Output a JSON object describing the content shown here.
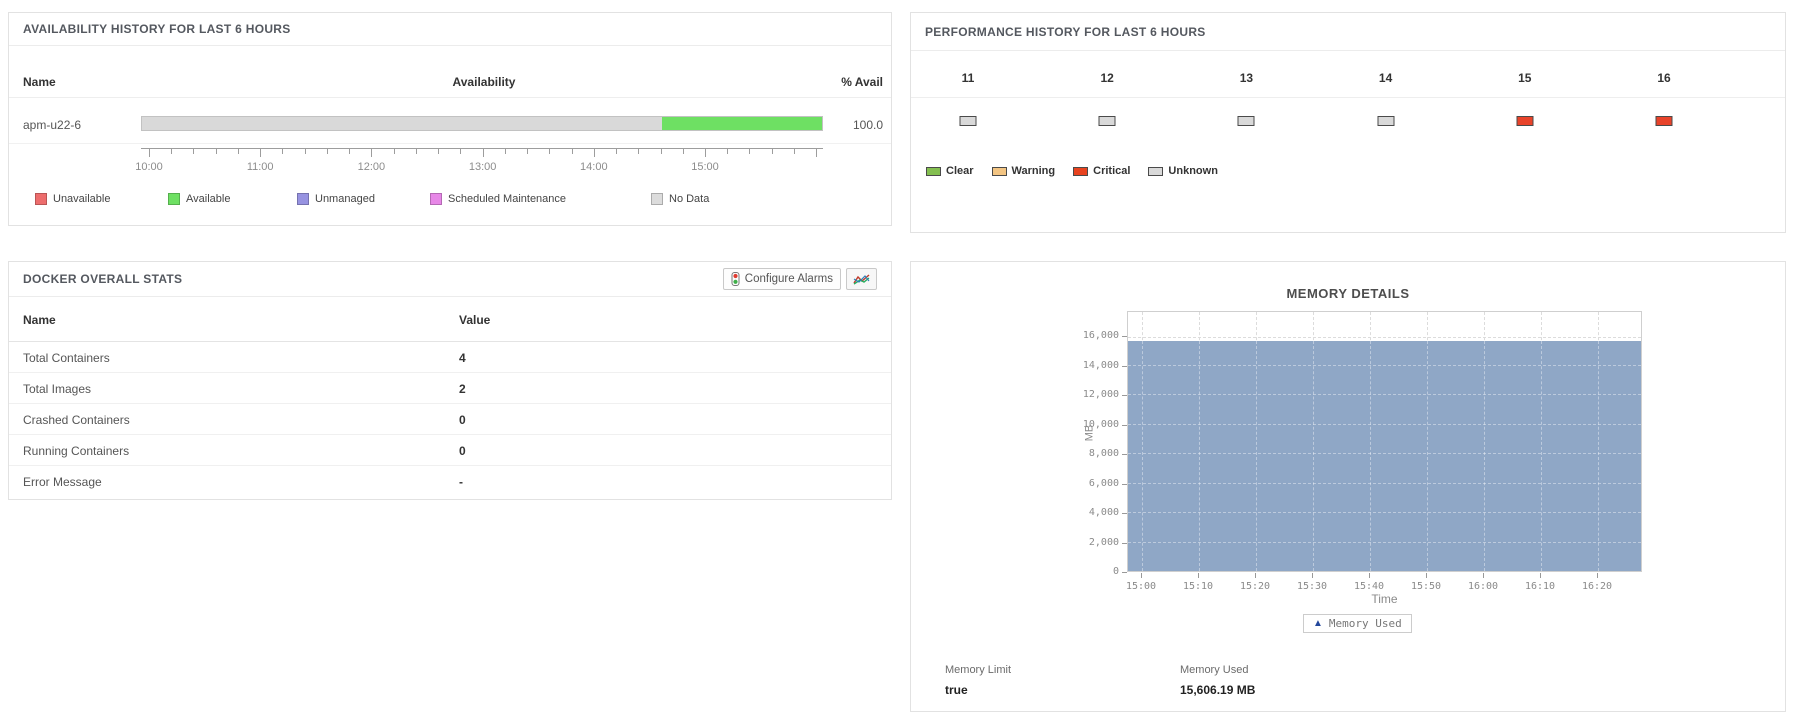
{
  "availability_panel": {
    "title": "AVAILABILITY HISTORY FOR LAST 6 HOURS",
    "columns": {
      "name": "Name",
      "availability": "Availability",
      "percent": "% Avail"
    },
    "row": {
      "name": "apm-u22-6",
      "percent_avail": "100.0"
    },
    "bar_segments": [
      {
        "status": "No Data",
        "color": "#d9d9d9",
        "percent": 76.4
      },
      {
        "status": "Available",
        "color": "#6ee063",
        "percent": 23.6
      }
    ],
    "axis_labels": [
      "10:00",
      "11:00",
      "12:00",
      "13:00",
      "14:00",
      "15:00"
    ],
    "legend": [
      {
        "label": "Unavailable",
        "color": "#ed6d6d"
      },
      {
        "label": "Available",
        "color": "#6ee063"
      },
      {
        "label": "Unmanaged",
        "color": "#9793e1"
      },
      {
        "label": "Scheduled Maintenance",
        "color": "#e787e7"
      },
      {
        "label": "No Data",
        "color": "#dcdcdc"
      }
    ]
  },
  "performance_panel": {
    "title": "PERFORMANCE HISTORY FOR LAST 6 HOURS",
    "hours": [
      {
        "label": "11",
        "status": "Unknown",
        "color": "#d9d9d9"
      },
      {
        "label": "12",
        "status": "Unknown",
        "color": "#d9d9d9"
      },
      {
        "label": "13",
        "status": "Unknown",
        "color": "#d9d9d9"
      },
      {
        "label": "14",
        "status": "Unknown",
        "color": "#d9d9d9"
      },
      {
        "label": "15",
        "status": "Critical",
        "color": "#e8432a"
      },
      {
        "label": "16",
        "status": "Critical",
        "color": "#e8432a"
      }
    ],
    "legend": [
      {
        "label": "Clear",
        "color": "#84bf50"
      },
      {
        "label": "Warning",
        "color": "#f3c583"
      },
      {
        "label": "Critical",
        "color": "#e8431f"
      },
      {
        "label": "Unknown",
        "color": "#d9d9d9"
      }
    ]
  },
  "docker_panel": {
    "title": "DOCKER OVERALL STATS",
    "buttons": {
      "configure_alarms": "Configure Alarms"
    },
    "columns": {
      "name": "Name",
      "value": "Value"
    },
    "rows": [
      {
        "name": "Total Containers",
        "value": "4"
      },
      {
        "name": "Total Images",
        "value": "2"
      },
      {
        "name": "Crashed Containers",
        "value": "0"
      },
      {
        "name": "Running Containers",
        "value": "0"
      },
      {
        "name": "Error Message",
        "value": "-"
      }
    ]
  },
  "memory_panel": {
    "title": "MEMORY DETAILS",
    "legend_label": "Memory Used",
    "footer": [
      {
        "label": "Memory Limit",
        "value": "true"
      },
      {
        "label": "Memory Used",
        "value": "15,606.19 MB"
      }
    ]
  },
  "icons": {
    "configure_alarms": "traffic-light-icon",
    "report_button": "line-chart-icon",
    "memory_legend_marker": "area-marker-icon"
  },
  "chart_data": [
    {
      "type": "bar",
      "title": "Availability timeline for apm-u22-6",
      "orientation": "horizontal-timeline",
      "x_ticks": [
        "10:00",
        "11:00",
        "12:00",
        "13:00",
        "14:00",
        "15:00"
      ],
      "x_range": [
        "10:00",
        "16:00"
      ],
      "segments": [
        {
          "label": "No Data",
          "percent": 76.4,
          "color": "#d9d9d9",
          "from": "10:00",
          "to": "14:35"
        },
        {
          "label": "Available",
          "percent": 23.6,
          "color": "#6ee063",
          "from": "14:35",
          "to": "16:00"
        }
      ],
      "percent_available": 100.0
    },
    {
      "type": "heatmap",
      "title": "Performance history by hour",
      "categories": [
        "11",
        "12",
        "13",
        "14",
        "15",
        "16"
      ],
      "values": [
        "Unknown",
        "Unknown",
        "Unknown",
        "Unknown",
        "Critical",
        "Critical"
      ],
      "legend": [
        "Clear",
        "Warning",
        "Critical",
        "Unknown"
      ]
    },
    {
      "type": "area",
      "title": "MEMORY DETAILS",
      "xlabel": "Time",
      "ylabel": "MB",
      "x": [
        "15:00",
        "15:10",
        "15:20",
        "15:30",
        "15:40",
        "15:50",
        "16:00",
        "16:10",
        "16:20"
      ],
      "series": [
        {
          "name": "Memory Used",
          "color": "#8fa7c6",
          "values": [
            15606.19,
            15606.19,
            15606.19,
            15606.19,
            15606.19,
            15606.19,
            15606.19,
            15606.19,
            15606.19
          ]
        }
      ],
      "y_ticks": [
        0,
        2000,
        4000,
        6000,
        8000,
        10000,
        12000,
        14000,
        16000
      ],
      "ylim": [
        0,
        17700
      ],
      "grid": true,
      "legend_position": "bottom"
    }
  ]
}
